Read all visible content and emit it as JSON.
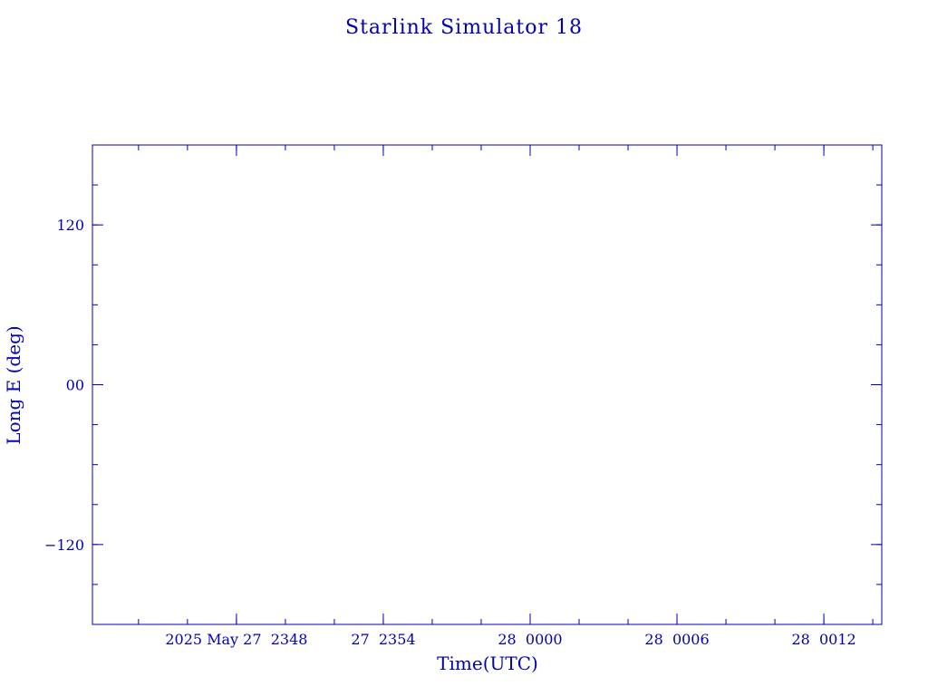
{
  "chart_data": {
    "type": "line",
    "title": "Starlink Simulator 18",
    "xlabel": "Time(UTC)",
    "ylabel": "Long E (deg)",
    "color": "#0000b4",
    "xlim": [
      "2025-05-27T23:42:07Z",
      "2025-05-28T00:14:22Z"
    ],
    "ylim": [
      -180,
      180
    ],
    "x_major_ticks": [
      {
        "time": "2025-05-27T23:48:00Z",
        "label": "2025 May 27  2348"
      },
      {
        "time": "2025-05-27T23:54:00Z",
        "label": "27  2354"
      },
      {
        "time": "2025-05-28T00:00:00Z",
        "label": "28  0000"
      },
      {
        "time": "2025-05-28T00:06:00Z",
        "label": "28  0006"
      },
      {
        "time": "2025-05-28T00:12:00Z",
        "label": "28  0012"
      }
    ],
    "x_minor_tick_minutes": 2,
    "y_major_ticks": [
      {
        "value": 120,
        "label": "120"
      },
      {
        "value": 0,
        "label": "00"
      },
      {
        "value": -120,
        "label": "−120"
      }
    ],
    "y_minor_tick_step": 30,
    "grid": false,
    "series": []
  }
}
